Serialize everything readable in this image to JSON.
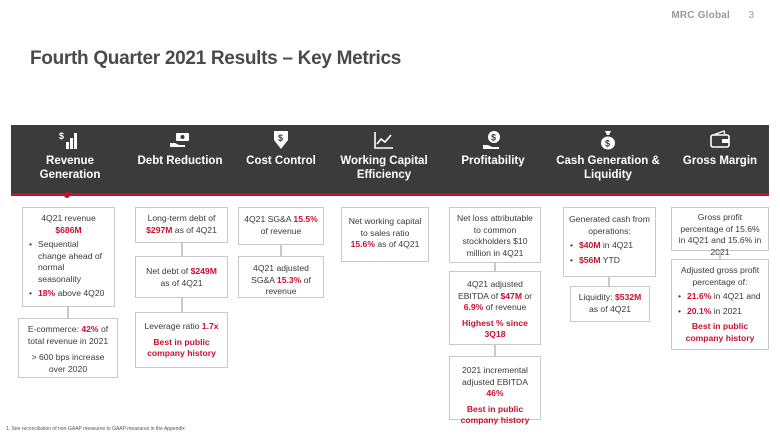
{
  "header": {
    "logo": "MRC Global",
    "page": "3"
  },
  "title": "Fourth Quarter 2021 Results – Key Metrics",
  "colors": {
    "accent": "#c8102e",
    "band": "#3b3b3b"
  },
  "columns": [
    {
      "heading": "Revenue Generation",
      "icon": "bar-chart-dollar-icon"
    },
    {
      "heading": "Debt Reduction",
      "icon": "hand-money-icon"
    },
    {
      "heading": "Cost Control",
      "icon": "dollar-down-arrow-icon"
    },
    {
      "heading": "Working Capital Efficiency",
      "icon": "line-chart-icon"
    },
    {
      "heading": "Profitability",
      "icon": "hand-dollar-icon"
    },
    {
      "heading": "Cash Generation & Liquidity",
      "icon": "money-bag-icon"
    },
    {
      "heading": "Gross Margin",
      "icon": "wallet-icon"
    }
  ],
  "revenue": {
    "b1_line1": "4Q21 revenue",
    "b1_value": "$686M",
    "b1_bullet1": "Sequential change ahead of normal seasonality",
    "b1_bullet2_val": "18%",
    "b1_bullet2_rest": " above 4Q20",
    "b2_pre": "E-commerce: ",
    "b2_val": "42%",
    "b2_post": " of total revenue in 2021",
    "b2_line2": "> 600 bps increase over 2020"
  },
  "debt": {
    "b1_pre": "Long-term debt of ",
    "b1_val": "$297M",
    "b1_post": " as of 4Q21",
    "b2_pre": "Net debt of ",
    "b2_val": "$249M",
    "b2_post": " as of 4Q21",
    "b3_pre": "Leverage ratio ",
    "b3_val": "1.7x",
    "b3_red": "Best in public company history"
  },
  "cost": {
    "b1_pre": "4Q21 SG&A ",
    "b1_val": "15.5%",
    "b1_post": " of revenue",
    "b2_pre": "4Q21 adjusted SG&A ",
    "b2_val": "15.3%",
    "b2_post": " of revenue"
  },
  "wc": {
    "b1_text": "Net working capital to sales ratio",
    "b1_val": "15.6%",
    "b1_post": " as of 4Q21"
  },
  "profit": {
    "b1_text": "Net loss attributable to common stockholders $10 million in 4Q21",
    "b2_pre": "4Q21 adjusted EBITDA of ",
    "b2_val1": "$47M",
    "b2_mid": " or ",
    "b2_val2": "6.9%",
    "b2_post": " of revenue",
    "b2_red": "Highest % since 3Q18",
    "b3_pre": "2021 incremental adjusted EBITDA ",
    "b3_val": "46%",
    "b3_red": "Best in public company history"
  },
  "cash": {
    "b1_text": "Generated cash from operations:",
    "b1_bullet1_val": "$40M",
    "b1_bullet1_rest": " in 4Q21",
    "b1_bullet2_val": "$56M",
    "b1_bullet2_rest": " YTD",
    "b2_pre": "Liquidity: ",
    "b2_val": "$532M",
    "b2_post": " as of 4Q21"
  },
  "gross": {
    "b1_text": "Gross profit percentage of 15.6% in 4Q21 and 15.6% in 2021",
    "b2_text": "Adjusted gross profit percentage of:",
    "b2_bullet1_val": "21.6%",
    "b2_bullet1_rest": " in 4Q21 and",
    "b2_bullet2_val": "20.1%",
    "b2_bullet2_rest": " in 2021",
    "b2_red": "Best in public company history"
  },
  "footnote": "1.  See reconciliation of non-GAAP measures to GAAP measures in the Appendix"
}
